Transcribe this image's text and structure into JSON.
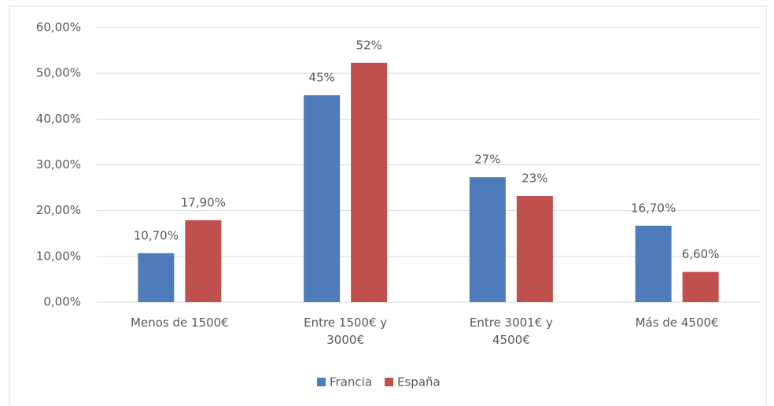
{
  "chart_data": {
    "type": "bar",
    "categories": [
      "Menos de 1500€",
      "Entre 1500€ y 3000€",
      "Entre 3001€ y 4500€",
      "Más de 4500€"
    ],
    "series": [
      {
        "name": "Francia",
        "color": "#4f7bbb",
        "values": [
          10.7,
          45.2,
          27.3,
          16.7
        ],
        "value_labels": [
          "10,70%",
          "45%",
          "27%",
          "16,70%"
        ]
      },
      {
        "name": "España",
        "color": "#c0504d",
        "values": [
          17.9,
          52.3,
          23.2,
          6.6
        ],
        "value_labels": [
          "17,90%",
          "52%",
          "23%",
          "6,60%"
        ]
      }
    ],
    "ylim": [
      0,
      60
    ],
    "yticks": [
      {
        "value": 0,
        "label": "0,00%"
      },
      {
        "value": 10,
        "label": "10,00%"
      },
      {
        "value": 20,
        "label": "20,00%"
      },
      {
        "value": 30,
        "label": "30,00%"
      },
      {
        "value": 40,
        "label": "40,00%"
      },
      {
        "value": 50,
        "label": "50,00%"
      },
      {
        "value": 60,
        "label": "60,00%"
      }
    ],
    "grid": true,
    "legend": "bottom"
  }
}
